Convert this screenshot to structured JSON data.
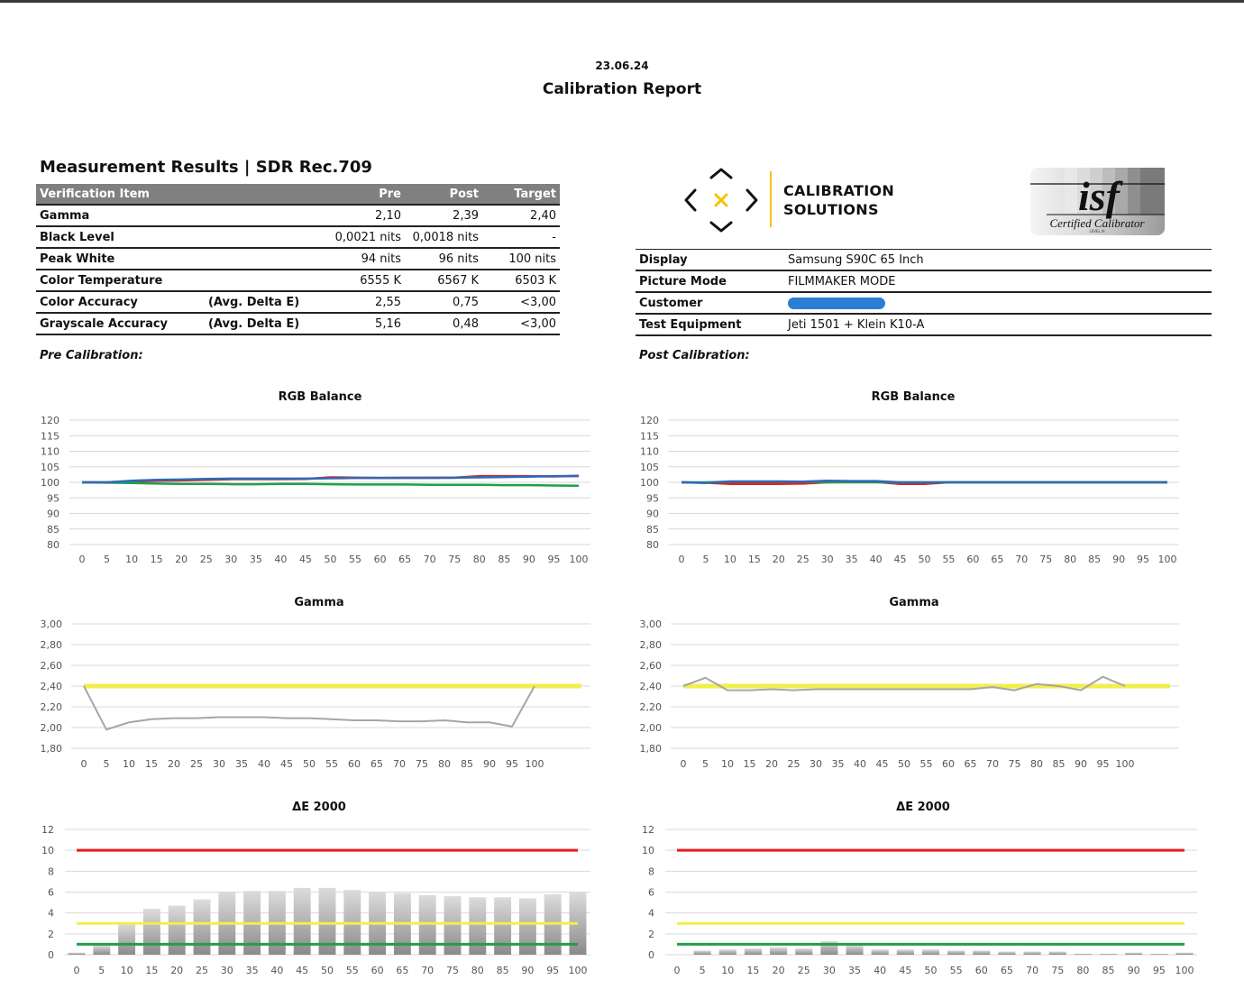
{
  "report": {
    "date": "23.06.24",
    "title": "Calibration Report",
    "section_title": "Measurement Results | SDR Rec.709",
    "pre_label": "Pre Calibration:",
    "post_label": "Post Calibration:"
  },
  "results_table": {
    "headers": [
      "Verification Item",
      "Pre",
      "Post",
      "Target"
    ],
    "rows": [
      {
        "item": "Gamma",
        "sub": "",
        "pre": "2,10",
        "post": "2,39",
        "target": "2,40"
      },
      {
        "item": "Black Level",
        "sub": "",
        "pre": "0,0021 nits",
        "post": "0,0018 nits",
        "target": "-"
      },
      {
        "item": "Peak White",
        "sub": "",
        "pre": "94 nits",
        "post": "96 nits",
        "target": "100 nits"
      },
      {
        "item": "Color Temperature",
        "sub": "",
        "pre": "6555 K",
        "post": "6567 K",
        "target": "6503 K"
      },
      {
        "item": "Color Accuracy",
        "sub": "(Avg. Delta E)",
        "pre": "2,55",
        "post": "0,75",
        "target": "<3,00"
      },
      {
        "item": "Grayscale Accuracy",
        "sub": "(Avg. Delta E)",
        "pre": "5,16",
        "post": "0,48",
        "target": "<3,00"
      }
    ]
  },
  "logo": {
    "line1": "CALIBRATION",
    "line2": "SOLUTIONS",
    "accent": "#f2c500",
    "isf_text": "isf",
    "isf_sub": "Certified Calibrator",
    "isf_level": "LEVEL III"
  },
  "info_table": {
    "rows": [
      {
        "label": "Display",
        "value": "Samsung S90C 65 Inch"
      },
      {
        "label": "Picture Mode",
        "value": "FILMMAKER MODE"
      },
      {
        "label": "Customer",
        "value": ""
      },
      {
        "label": "Test Equipment",
        "value": "Jeti 1501 + Klein K10-A"
      }
    ]
  },
  "chart_data": [
    {
      "id": "pre_rgb",
      "type": "line",
      "title": "RGB Balance",
      "x": [
        0,
        5,
        10,
        15,
        20,
        25,
        30,
        35,
        40,
        45,
        50,
        55,
        60,
        65,
        70,
        75,
        80,
        85,
        90,
        95,
        100
      ],
      "ylim": [
        80,
        120
      ],
      "yticks": [
        80,
        85,
        90,
        95,
        100,
        105,
        110,
        115,
        120
      ],
      "series": [
        {
          "color": "#e02020",
          "values": [
            100,
            100,
            100.3,
            100.5,
            100.6,
            100.8,
            101,
            101,
            101,
            101.1,
            101.6,
            101.5,
            101.4,
            101.4,
            101.4,
            101.5,
            102,
            102,
            102,
            101.9,
            102.1
          ]
        },
        {
          "color": "#1fa04a",
          "values": [
            100,
            99.9,
            99.8,
            99.6,
            99.5,
            99.5,
            99.4,
            99.4,
            99.5,
            99.5,
            99.4,
            99.3,
            99.3,
            99.3,
            99.2,
            99.2,
            99.2,
            99.1,
            99.1,
            99.0,
            98.9
          ]
        },
        {
          "color": "#2e6ab8",
          "values": [
            100,
            100,
            100.5,
            100.8,
            100.9,
            101.1,
            101.2,
            101.2,
            101.2,
            101.2,
            101.3,
            101.4,
            101.4,
            101.5,
            101.5,
            101.5,
            101.6,
            101.7,
            101.8,
            102,
            102
          ]
        }
      ]
    },
    {
      "id": "post_rgb",
      "type": "line",
      "title": "RGB Balance",
      "x": [
        0,
        5,
        10,
        15,
        20,
        25,
        30,
        35,
        40,
        45,
        50,
        55,
        60,
        65,
        70,
        75,
        80,
        85,
        90,
        95,
        100
      ],
      "ylim": [
        80,
        120
      ],
      "yticks": [
        80,
        85,
        90,
        95,
        100,
        105,
        110,
        115,
        120
      ],
      "series": [
        {
          "color": "#e02020",
          "values": [
            100,
            99.9,
            99.5,
            99.5,
            99.5,
            99.6,
            100,
            100.2,
            100.1,
            99.5,
            99.5,
            100,
            100,
            100,
            100,
            100,
            100,
            100,
            100,
            100,
            100
          ]
        },
        {
          "color": "#1fa04a",
          "values": [
            100,
            100,
            100.2,
            100.2,
            100.2,
            100.2,
            100,
            100,
            100,
            100,
            100,
            100,
            100,
            100,
            100,
            100,
            100,
            100,
            100,
            100,
            100
          ]
        },
        {
          "color": "#2e6ab8",
          "values": [
            100,
            99.8,
            100.3,
            100.3,
            100.3,
            100.2,
            100.5,
            100.4,
            100.4,
            100,
            100,
            100,
            100,
            100,
            100,
            100,
            100,
            100,
            100,
            100,
            100
          ]
        }
      ]
    },
    {
      "id": "pre_gamma",
      "type": "line",
      "title": "Gamma",
      "x": [
        0,
        5,
        10,
        15,
        20,
        25,
        30,
        35,
        40,
        45,
        50,
        55,
        60,
        65,
        70,
        75,
        80,
        85,
        90,
        95,
        100
      ],
      "ylim": [
        1.8,
        3.0
      ],
      "yticks": [
        "1,80",
        "2,00",
        "2,20",
        "2,40",
        "2,60",
        "2,80",
        "3,00"
      ],
      "target": {
        "value": 2.4,
        "color": "#f3ee4c"
      },
      "series": [
        {
          "color": "#a6a6a6",
          "values": [
            2.4,
            1.98,
            2.05,
            2.08,
            2.09,
            2.09,
            2.1,
            2.1,
            2.1,
            2.09,
            2.09,
            2.08,
            2.07,
            2.07,
            2.06,
            2.06,
            2.07,
            2.05,
            2.05,
            2.01,
            2.4
          ]
        }
      ]
    },
    {
      "id": "post_gamma",
      "type": "line",
      "title": "Gamma",
      "x": [
        0,
        5,
        10,
        15,
        20,
        25,
        30,
        35,
        40,
        45,
        50,
        55,
        60,
        65,
        70,
        75,
        80,
        85,
        90,
        95,
        100
      ],
      "ylim": [
        1.8,
        3.0
      ],
      "yticks": [
        "1,80",
        "2,00",
        "2,20",
        "2,40",
        "2,60",
        "2,80",
        "3,00"
      ],
      "target": {
        "value": 2.4,
        "color": "#f3ee4c"
      },
      "series": [
        {
          "color": "#a6a6a6",
          "values": [
            2.4,
            2.48,
            2.36,
            2.36,
            2.37,
            2.36,
            2.37,
            2.37,
            2.37,
            2.37,
            2.37,
            2.37,
            2.37,
            2.37,
            2.39,
            2.36,
            2.42,
            2.4,
            2.36,
            2.49,
            2.4
          ]
        }
      ]
    },
    {
      "id": "pre_de",
      "type": "bar",
      "title": "ΔE 2000",
      "x": [
        0,
        5,
        10,
        15,
        20,
        25,
        30,
        35,
        40,
        45,
        50,
        55,
        60,
        65,
        70,
        75,
        80,
        85,
        90,
        95,
        100
      ],
      "ylim": [
        0,
        12
      ],
      "yticks": [
        0,
        2,
        4,
        6,
        8,
        10,
        12
      ],
      "values": [
        0.2,
        0.9,
        3.0,
        4.4,
        4.7,
        5.3,
        6.0,
        6.1,
        6.1,
        6.4,
        6.4,
        6.2,
        6.0,
        5.9,
        5.7,
        5.6,
        5.5,
        5.5,
        5.4,
        5.8,
        6.0
      ],
      "thresholds": [
        {
          "value": 10,
          "color": "#e81c1c"
        },
        {
          "value": 3,
          "color": "#f3ee4c"
        },
        {
          "value": 1,
          "color": "#1fa04a"
        }
      ]
    },
    {
      "id": "post_de",
      "type": "bar",
      "title": "ΔE 2000",
      "x": [
        0,
        5,
        10,
        15,
        20,
        25,
        30,
        35,
        40,
        45,
        50,
        55,
        60,
        65,
        70,
        75,
        80,
        85,
        90,
        95,
        100
      ],
      "ylim": [
        0,
        12
      ],
      "yticks": [
        0,
        2,
        4,
        6,
        8,
        10,
        12
      ],
      "values": [
        0,
        0.4,
        0.5,
        0.6,
        0.7,
        0.6,
        1.3,
        0.9,
        0.5,
        0.5,
        0.5,
        0.4,
        0.4,
        0.3,
        0.3,
        0.3,
        0.1,
        0.1,
        0.2,
        0.1,
        0.2
      ],
      "thresholds": [
        {
          "value": 10,
          "color": "#e81c1c"
        },
        {
          "value": 3,
          "color": "#f3ee4c"
        },
        {
          "value": 1,
          "color": "#1fa04a"
        }
      ]
    }
  ]
}
